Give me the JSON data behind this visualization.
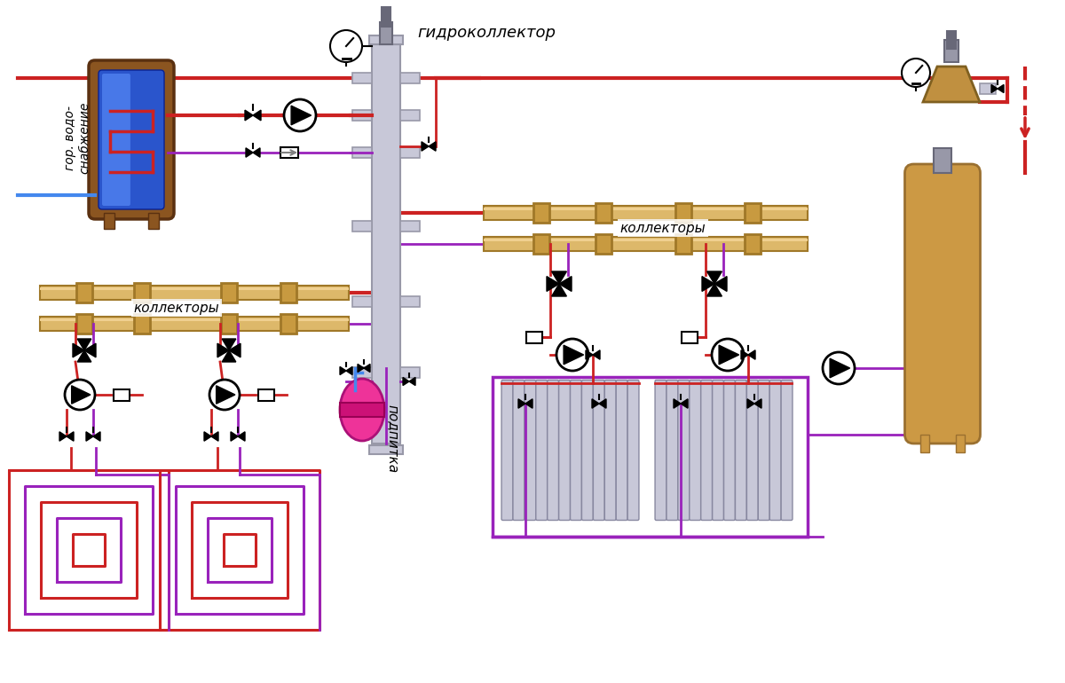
{
  "bg_color": "#ffffff",
  "pipe_red": "#cc2222",
  "pipe_blue": "#4488ee",
  "pipe_purple": "#9922bb",
  "gold_light": "#ddb86a",
  "gold_mid": "#c89a40",
  "gold_dark": "#a07828",
  "gray_light": "#c8c8d8",
  "gray_mid": "#9898a8",
  "gray_dark": "#686878",
  "tank_brown": "#8b5520",
  "tank_blue_dark": "#1a3590",
  "tank_blue_light": "#3060cc",
  "boiler_gold": "#cc9944",
  "boiler_gold_dark": "#9a7030",
  "sep_gold": "#c09040",
  "expansion_pink": "#ee3399",
  "text_color": "#000000",
  "label_гидроколлектор": "гидроколлектор",
  "label_коллекторы1": "коллекторы",
  "label_коллекторы2": "коллекторы",
  "label_подпитка": "подпитка",
  "label_горводоснабжение": "гор. водо-\nснабжение"
}
